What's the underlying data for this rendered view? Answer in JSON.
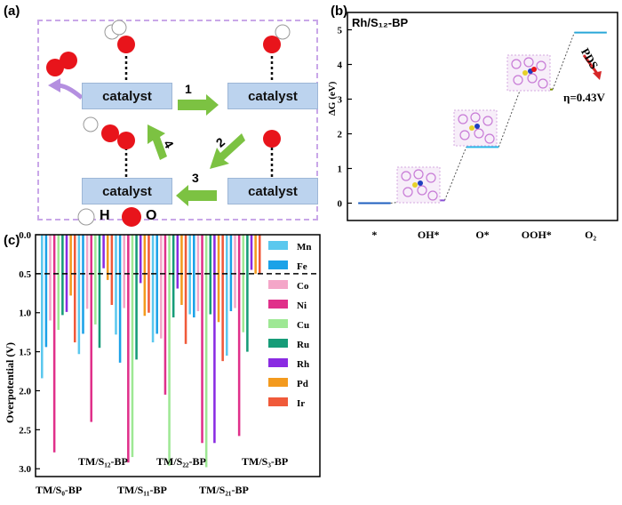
{
  "panel_a": {
    "label": "(a)",
    "catalyst_label": "catalyst",
    "steps": [
      "1",
      "2",
      "3",
      "4"
    ],
    "legend_h": "H",
    "legend_o": "O"
  },
  "panel_b": {
    "label": "(b)",
    "title": "Rh/S₁₂-BP",
    "ylabel": "ΔG (eV)",
    "pds_label": "PDS",
    "eta_label": "η=0.43V",
    "colors": {
      "frame": "#000000",
      "accent": "#d62728"
    }
  },
  "panel_c": {
    "label": "(c)",
    "ylabel": "Overpotential (V)",
    "group_labels": [
      "TM/S₀-BP",
      "TM/S₁₂-BP",
      "TM/S₁₁-BP",
      "TM/S₂₂-BP",
      "TM/S₂₁-BP",
      "TM/S₃-BP"
    ]
  },
  "chart_data": [
    {
      "type": "line",
      "name": "free-energy-diagram",
      "title": "Rh/S₁₂-BP",
      "ylabel": "ΔG (eV)",
      "categories": [
        "*",
        "OH*",
        "O*",
        "OOH*",
        "O₂"
      ],
      "values": [
        0.0,
        0.08,
        1.62,
        3.28,
        4.92
      ],
      "level_colors": [
        "#1f5fbf",
        "#8a4fd8",
        "#29b6e8",
        "#7b8f00",
        "#29a7d8"
      ],
      "ylim": [
        -0.5,
        5.5
      ],
      "yticks": [
        0,
        1,
        2,
        3,
        4,
        5
      ],
      "annotations": [
        "PDS",
        "η=0.43V"
      ]
    },
    {
      "type": "bar",
      "name": "overpotential-bars",
      "ylabel": "Overpotential (V)",
      "ylim": [
        0.0,
        3.1
      ],
      "yticks": [
        "0.0",
        "0.5",
        "1.0",
        "1.5",
        "2.0",
        "2.5",
        "3.0"
      ],
      "reference_line": 0.5,
      "categories": [
        "TM/S₀-BP",
        "TM/S₁₂-BP",
        "TM/S₁₁-BP",
        "TM/S₂₂-BP",
        "TM/S₂₁-BP",
        "TM/S₃-BP"
      ],
      "series": [
        {
          "name": "Mn",
          "color": "#5bc8ee",
          "values": [
            1.84,
            1.53,
            1.28,
            1.38,
            1.02,
            1.55
          ]
        },
        {
          "name": "Fe",
          "color": "#1ba2e8",
          "values": [
            1.44,
            1.27,
            1.64,
            1.27,
            1.06,
            0.98
          ]
        },
        {
          "name": "Co",
          "color": "#f4a6c8",
          "values": [
            1.1,
            0.95,
            0.94,
            1.33,
            0.98,
            0.94
          ]
        },
        {
          "name": "Ni",
          "color": "#e0308a",
          "values": [
            2.79,
            2.4,
            2.92,
            2.05,
            2.67,
            2.58
          ]
        },
        {
          "name": "Cu",
          "color": "#9ee894",
          "values": [
            1.22,
            1.15,
            2.85,
            2.96,
            2.98,
            1.25
          ]
        },
        {
          "name": "Ru",
          "color": "#169c78",
          "values": [
            1.03,
            1.45,
            1.6,
            1.06,
            1.02,
            1.5
          ]
        },
        {
          "name": "Rh",
          "color": "#8a2be2",
          "values": [
            0.99,
            0.43,
            0.62,
            0.69,
            2.67,
            0.45
          ]
        },
        {
          "name": "Pd",
          "color": "#f39a1e",
          "values": [
            0.78,
            0.58,
            1.04,
            0.9,
            1.12,
            0.5
          ]
        },
        {
          "name": "Ir",
          "color": "#f05a3a",
          "values": [
            1.38,
            0.9,
            1.0,
            1.4,
            1.62,
            0.5
          ]
        }
      ]
    }
  ]
}
